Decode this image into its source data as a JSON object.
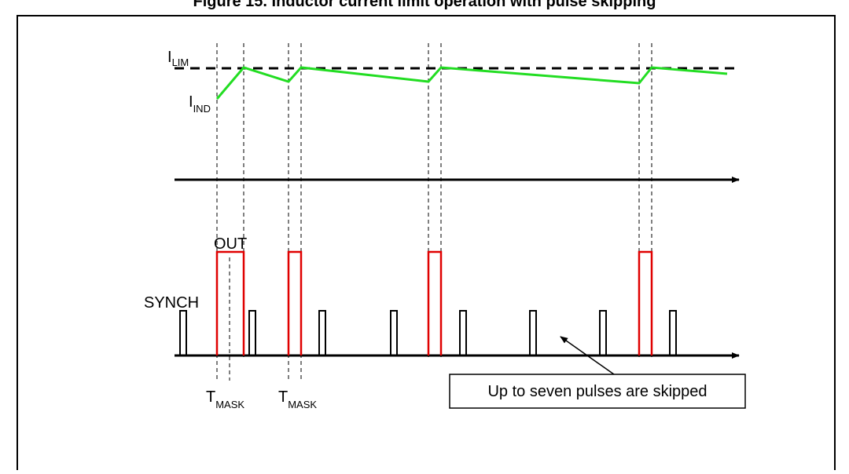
{
  "figure": {
    "caption": "Figure 15. Inductor current limit operation with pulse skipping"
  },
  "labels": {
    "i_lim_main": "I",
    "i_lim_sub": "LIM",
    "i_ind_main": "I",
    "i_ind_sub": "IND",
    "out": "OUT",
    "synch": "SYNCH",
    "t_mask_main": "T",
    "t_mask_sub": "MASK",
    "note": "Up to seven pulses are skipped"
  },
  "colors": {
    "current_trace": "#22dd22",
    "out_pulses": "#e00000",
    "synch_pulses": "#000000",
    "limit_line": "#000000"
  }
}
